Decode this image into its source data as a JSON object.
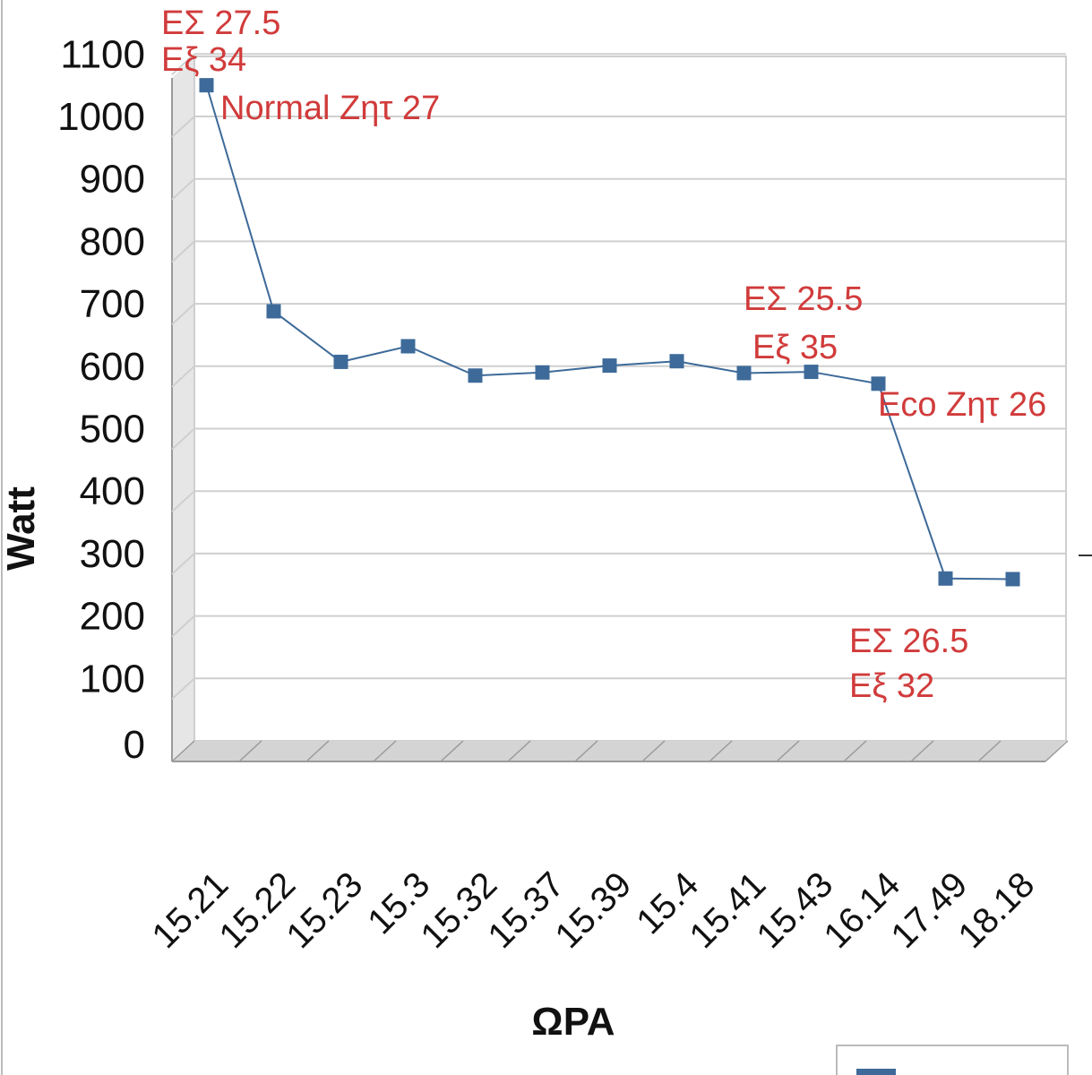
{
  "chart_data": {
    "type": "line",
    "title": "",
    "xlabel": "ΩΡΑ",
    "ylabel": "Watt",
    "ylim": [
      0,
      1100
    ],
    "yticks": [
      0,
      100,
      200,
      300,
      400,
      500,
      600,
      700,
      800,
      900,
      1000,
      1100
    ],
    "categories": [
      "15.21",
      "15.22",
      "15.23",
      "15.3",
      "15.32",
      "15.37",
      "15.39",
      "15.4",
      "15.41",
      "15.43",
      "16.14",
      "17.49",
      "18.18"
    ],
    "series": [
      {
        "name": "",
        "color": "#3d6a99",
        "values": [
          1050,
          688,
          607,
          632,
          585,
          590,
          601,
          608,
          589,
          591,
          572,
          260,
          259
        ]
      }
    ],
    "grid": true,
    "legend": "bottom-right",
    "annotations": [
      {
        "text": "ΕΣ 27.5",
        "at": "15.21"
      },
      {
        "text": "Εξ 34",
        "at": "15.21"
      },
      {
        "text": "Normal Ζητ 27",
        "at": "15.21"
      },
      {
        "text": "ΕΣ 25.5",
        "at": "15.43"
      },
      {
        "text": "Εξ 35",
        "at": "15.43"
      },
      {
        "text": "Eco Ζητ 26",
        "at": "16.14"
      },
      {
        "text": "ΕΣ 26.5",
        "at": "17.49"
      },
      {
        "text": "Εξ 32",
        "at": "17.49"
      }
    ]
  }
}
